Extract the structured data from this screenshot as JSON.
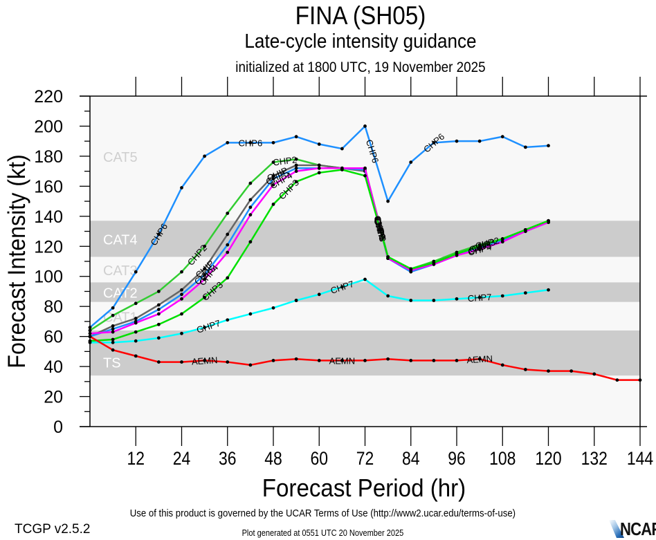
{
  "header": {
    "title": "FINA (SH05)",
    "subtitle": "Late-cycle intensity guidance",
    "init_line": "initialized at 1800 UTC, 19 November 2025"
  },
  "footer": {
    "terms": "Use of this product is governed by the UCAR Terms of Use (http://www2.ucar.edu/terms-of-use)",
    "version": "TCGP v2.5.2",
    "generated": "Plot generated at 0551 UTC   20 November 2025",
    "logo_text": "NCAR"
  },
  "chart_data": {
    "type": "line",
    "xlabel": "Forecast Period (hr)",
    "ylabel": "Forecast Intensity (kt)",
    "xlim": [
      0,
      144
    ],
    "ylim": [
      0,
      220
    ],
    "xticks": [
      12,
      24,
      36,
      48,
      60,
      72,
      84,
      96,
      108,
      120,
      132,
      144
    ],
    "yticks": [
      0,
      20,
      40,
      60,
      80,
      100,
      120,
      140,
      160,
      180,
      200,
      220
    ],
    "grid": false,
    "legend": "inline-labels",
    "category_bands": [
      {
        "name": "TS",
        "min": 34,
        "max": 64,
        "shaded": true
      },
      {
        "name": "CAT1",
        "min": 64,
        "max": 83,
        "shaded": false
      },
      {
        "name": "CAT2",
        "min": 83,
        "max": 96,
        "shaded": true
      },
      {
        "name": "CAT3",
        "min": 96,
        "max": 113,
        "shaded": false
      },
      {
        "name": "CAT4",
        "min": 113,
        "max": 137,
        "shaded": true
      },
      {
        "name": "CAT5",
        "min": 137,
        "max": 220,
        "shaded": false
      }
    ],
    "series": [
      {
        "name": "CHP6",
        "color": "#1e90ff",
        "x": [
          0,
          6,
          12,
          18,
          24,
          30,
          36,
          42,
          48,
          54,
          60,
          66,
          72,
          78,
          84,
          90,
          96,
          102,
          108,
          114,
          120
        ],
        "values": [
          66,
          79,
          103,
          128,
          159,
          180,
          189,
          189,
          189,
          193,
          188,
          185,
          200,
          150,
          176,
          189,
          190,
          190,
          193,
          186,
          187
        ],
        "label_at": [
          18,
          42,
          74,
          90
        ]
      },
      {
        "name": "CHP2",
        "color": "#32cd32",
        "x": [
          0,
          6,
          12,
          18,
          24,
          30,
          36,
          42,
          48,
          54,
          60,
          66,
          72,
          78,
          84,
          90,
          96,
          102,
          108,
          114,
          120
        ],
        "values": [
          64,
          74,
          82,
          90,
          103,
          120,
          142,
          162,
          176,
          178,
          174,
          172,
          172,
          113,
          105,
          110,
          116,
          121,
          125,
          131,
          137
        ],
        "label_at": [
          28,
          51,
          76,
          104
        ]
      },
      {
        "name": "CHIP",
        "color": "#666666",
        "x": [
          0,
          6,
          12,
          18,
          24,
          30,
          36,
          42,
          48,
          54,
          60,
          66,
          72,
          78,
          84,
          90,
          96,
          102,
          108,
          114,
          120
        ],
        "values": [
          60,
          67,
          72,
          81,
          91,
          105,
          128,
          151,
          167,
          174,
          174,
          172,
          170,
          112,
          104,
          109,
          115,
          120,
          124,
          131,
          136
        ],
        "label_at": [
          30,
          49,
          76,
          102
        ]
      },
      {
        "name": "CHP5",
        "color": "#1e90ff",
        "x": [
          0,
          6,
          12,
          18,
          24,
          30,
          36,
          42,
          48,
          54,
          60,
          66,
          72,
          78,
          84,
          90,
          96,
          102,
          108,
          114,
          120
        ],
        "values": [
          60,
          65,
          70,
          78,
          88,
          101,
          121,
          146,
          165,
          172,
          172,
          172,
          171,
          112,
          103,
          108,
          114,
          119,
          124,
          130,
          136
        ],
        "label_at": [
          30,
          49,
          76,
          102
        ]
      },
      {
        "name": "CHP4",
        "color": "#ff00ff",
        "x": [
          0,
          6,
          12,
          18,
          24,
          30,
          36,
          42,
          48,
          54,
          60,
          66,
          72,
          78,
          84,
          90,
          96,
          102,
          108,
          114,
          120
        ],
        "values": [
          62,
          63,
          69,
          75,
          85,
          98,
          116,
          141,
          161,
          170,
          172,
          172,
          172,
          112,
          104,
          108,
          114,
          118,
          123,
          130,
          136
        ],
        "label_at": [
          31,
          50,
          76,
          102
        ]
      },
      {
        "name": "CHP3",
        "color": "#00e000",
        "x": [
          0,
          6,
          12,
          18,
          24,
          30,
          36,
          42,
          48,
          54,
          60,
          66,
          72,
          78,
          84,
          90,
          96,
          102,
          108,
          114,
          120
        ],
        "values": [
          57,
          58,
          63,
          68,
          75,
          86,
          99,
          123,
          148,
          163,
          169,
          171,
          167,
          113,
          105,
          109,
          115,
          120,
          125,
          131,
          137
        ],
        "label_at": [
          32,
          52,
          76,
          103
        ]
      },
      {
        "name": "GHP7",
        "color": "#00ffff",
        "x": [
          0,
          6,
          12,
          18,
          24,
          30,
          36,
          42,
          48,
          54
        ],
        "values": [
          56,
          56,
          57,
          59,
          62,
          66,
          71,
          75,
          79,
          84
        ],
        "label_at": [
          31
        ]
      },
      {
        "name": "CHP7",
        "color": "#00ffff",
        "x": [
          54,
          60,
          66,
          72,
          78,
          84,
          90,
          96,
          102,
          108,
          114,
          120
        ],
        "values": [
          84,
          88,
          93,
          98,
          87,
          84,
          84,
          85,
          86,
          87,
          89,
          91
        ],
        "label_at": [
          66,
          102
        ]
      },
      {
        "name": "AEMN",
        "color": "#ff0000",
        "x": [
          0,
          6,
          12,
          18,
          24,
          30,
          36,
          42,
          48,
          54,
          60,
          66,
          72,
          78,
          84,
          90,
          96,
          102,
          108,
          114,
          120,
          126,
          132,
          138,
          144
        ],
        "values": [
          60,
          51,
          47,
          43,
          43,
          44,
          43,
          41,
          44,
          45,
          44,
          44,
          44,
          45,
          44,
          44,
          44,
          45,
          41,
          38,
          37,
          37,
          35,
          31,
          31
        ],
        "label_at": [
          30,
          66,
          102
        ]
      }
    ]
  }
}
